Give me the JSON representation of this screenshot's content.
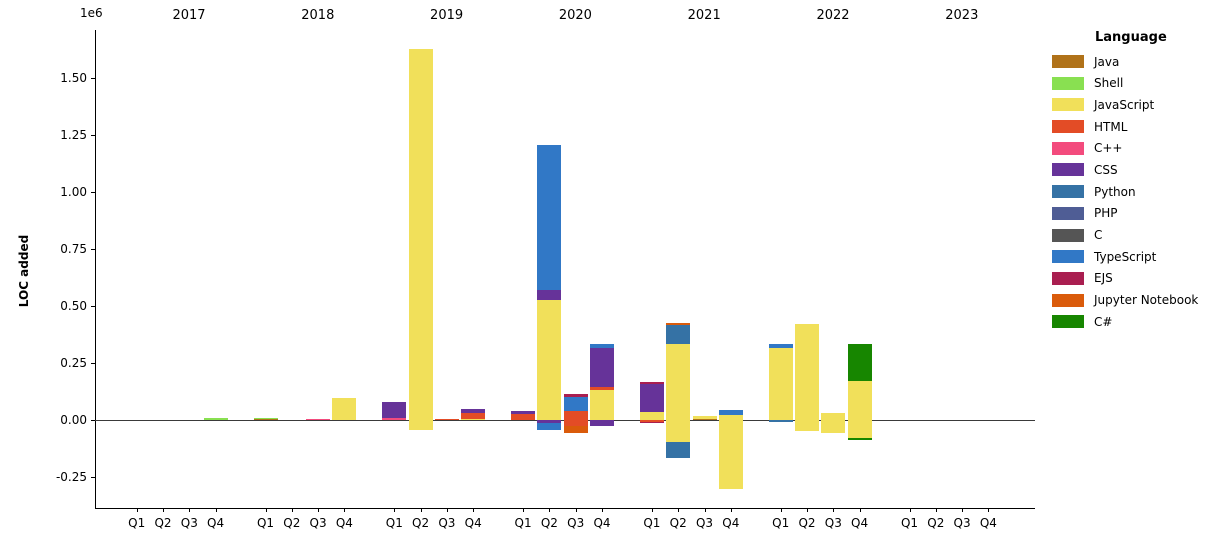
{
  "figure": {
    "ylabel": "LOC added",
    "offset_label": "1e6"
  },
  "legend": {
    "title": "Language",
    "entries": [
      {
        "name": "Java",
        "color": "#b07219"
      },
      {
        "name": "Shell",
        "color": "#89e051"
      },
      {
        "name": "JavaScript",
        "color": "#f1e05a"
      },
      {
        "name": "HTML",
        "color": "#e34c26"
      },
      {
        "name": "C++",
        "color": "#f34b7d"
      },
      {
        "name": "CSS",
        "color": "#663399"
      },
      {
        "name": "Python",
        "color": "#3572a5"
      },
      {
        "name": "PHP",
        "color": "#4f5d95"
      },
      {
        "name": "C",
        "color": "#555555"
      },
      {
        "name": "TypeScript",
        "color": "#3178c6"
      },
      {
        "name": "EJS",
        "color": "#a91e50"
      },
      {
        "name": "Jupyter Notebook",
        "color": "#da5b0b"
      },
      {
        "name": "C#",
        "color": "#178600"
      }
    ]
  },
  "chart_data": {
    "type": "bar",
    "stacked": true,
    "title": "",
    "xlabel": "",
    "ylabel": "LOC added",
    "unit": "lines of code",
    "y_axis_multiplier_label": "1e6",
    "ylim": [
      -390000,
      1715000
    ],
    "grid": false,
    "legend_position": "right",
    "years": [
      "2017",
      "2018",
      "2019",
      "2020",
      "2021",
      "2022",
      "2023"
    ],
    "quarters": [
      "Q1",
      "Q2",
      "Q3",
      "Q4"
    ],
    "yticks": [
      {
        "label": "1.50",
        "value": 1500000
      },
      {
        "label": "1.25",
        "value": 1250000
      },
      {
        "label": "1.00",
        "value": 1000000
      },
      {
        "label": "0.75",
        "value": 750000
      },
      {
        "label": "0.50",
        "value": 500000
      },
      {
        "label": "0.25",
        "value": 250000
      },
      {
        "label": "0.00",
        "value": 0
      },
      {
        "label": "-0.25",
        "value": -250000
      }
    ],
    "bars": [
      {
        "year": "2017",
        "quarter": "Q4",
        "segments": [
          {
            "language": "Shell",
            "value": 7000
          }
        ]
      },
      {
        "year": "2018",
        "quarter": "Q1",
        "segments": [
          {
            "language": "Java",
            "value": 4000
          },
          {
            "language": "Shell",
            "value": 6000
          }
        ]
      },
      {
        "year": "2018",
        "quarter": "Q3",
        "segments": [
          {
            "language": "C++",
            "value": 6000
          }
        ]
      },
      {
        "year": "2018",
        "quarter": "Q4",
        "segments": [
          {
            "language": "JavaScript",
            "value": 95000
          }
        ]
      },
      {
        "year": "2019",
        "quarter": "Q1",
        "segments": [
          {
            "language": "C++",
            "value": 7000
          },
          {
            "language": "CSS",
            "value": 73000
          }
        ]
      },
      {
        "year": "2019",
        "quarter": "Q2",
        "segments": [
          {
            "language": "JavaScript",
            "value": 1630000
          },
          {
            "language": "JavaScript",
            "value": -45000
          }
        ]
      },
      {
        "year": "2019",
        "quarter": "Q3",
        "segments": [
          {
            "language": "HTML",
            "value": 6000
          }
        ]
      },
      {
        "year": "2019",
        "quarter": "Q4",
        "segments": [
          {
            "language": "JavaScript",
            "value": 6000
          },
          {
            "language": "HTML",
            "value": 26000
          },
          {
            "language": "CSS",
            "value": 15000
          }
        ]
      },
      {
        "year": "2020",
        "quarter": "Q1",
        "segments": [
          {
            "language": "HTML",
            "value": 28000
          },
          {
            "language": "CSS",
            "value": 10000
          }
        ]
      },
      {
        "year": "2020",
        "quarter": "Q2",
        "segments": [
          {
            "language": "JavaScript",
            "value": 527000
          },
          {
            "language": "CSS",
            "value": 44000
          },
          {
            "language": "TypeScript",
            "value": 637000
          },
          {
            "language": "CSS",
            "value": -13000
          },
          {
            "language": "TypeScript",
            "value": -29000
          }
        ]
      },
      {
        "year": "2020",
        "quarter": "Q3",
        "segments": [
          {
            "language": "HTML",
            "value": 41000
          },
          {
            "language": "TypeScript",
            "value": 61000
          },
          {
            "language": "EJS",
            "value": 10000
          },
          {
            "language": "HTML",
            "value": -26000
          },
          {
            "language": "Jupyter Notebook",
            "value": -30000
          }
        ]
      },
      {
        "year": "2020",
        "quarter": "Q4",
        "segments": [
          {
            "language": "JavaScript",
            "value": 132000
          },
          {
            "language": "HTML",
            "value": 12000
          },
          {
            "language": "CSS",
            "value": 171000
          },
          {
            "language": "TypeScript",
            "value": 19000
          },
          {
            "language": "CSS",
            "value": -25000
          }
        ]
      },
      {
        "year": "2021",
        "quarter": "Q1",
        "segments": [
          {
            "language": "JavaScript",
            "value": 34000
          },
          {
            "language": "CSS",
            "value": 126000
          },
          {
            "language": "EJS",
            "value": 6000
          },
          {
            "language": "HTML",
            "value": -8000
          },
          {
            "language": "EJS",
            "value": -6000
          }
        ]
      },
      {
        "year": "2021",
        "quarter": "Q2",
        "segments": [
          {
            "language": "JavaScript",
            "value": 335000
          },
          {
            "language": "Python",
            "value": 82000
          },
          {
            "language": "Jupyter Notebook",
            "value": 8000
          },
          {
            "language": "JavaScript",
            "value": -95000
          },
          {
            "language": "Python",
            "value": -73000
          }
        ]
      },
      {
        "year": "2021",
        "quarter": "Q3",
        "segments": [
          {
            "language": "Java",
            "value": 5000
          },
          {
            "language": "JavaScript",
            "value": 12000
          }
        ]
      },
      {
        "year": "2021",
        "quarter": "Q4",
        "segments": [
          {
            "language": "JavaScript",
            "value": 22000
          },
          {
            "language": "TypeScript",
            "value": 22000
          },
          {
            "language": "JavaScript",
            "value": -305000
          }
        ]
      },
      {
        "year": "2022",
        "quarter": "Q1",
        "segments": [
          {
            "language": "JavaScript",
            "value": 318000
          },
          {
            "language": "TypeScript",
            "value": 17000
          },
          {
            "language": "Python",
            "value": -10000
          }
        ]
      },
      {
        "year": "2022",
        "quarter": "Q2",
        "segments": [
          {
            "language": "JavaScript",
            "value": 420000
          },
          {
            "language": "JavaScript",
            "value": -50000
          }
        ]
      },
      {
        "year": "2022",
        "quarter": "Q3",
        "segments": [
          {
            "language": "JavaScript",
            "value": 30000
          },
          {
            "language": "JavaScript",
            "value": -58000
          }
        ]
      },
      {
        "year": "2022",
        "quarter": "Q4",
        "segments": [
          {
            "language": "JavaScript",
            "value": 172000
          },
          {
            "language": "C#",
            "value": 161000
          },
          {
            "language": "JavaScript",
            "value": -80000
          },
          {
            "language": "C#",
            "value": -6000
          }
        ]
      }
    ]
  }
}
